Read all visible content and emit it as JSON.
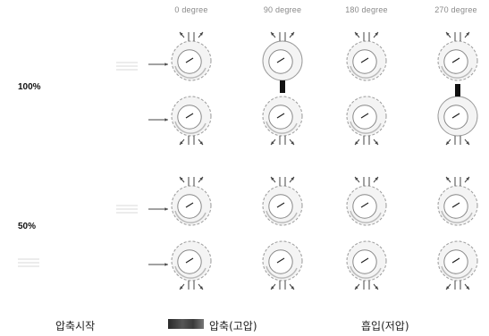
{
  "columns": [
    "0 degree",
    "90 degree",
    "180 degree",
    "270 degree"
  ],
  "rows": [
    {
      "label": "100%"
    },
    {
      "label": "50%"
    }
  ],
  "legend": {
    "start": "압축시작",
    "compression": "압축(고압)",
    "suction": "흡입(저압)"
  },
  "cells": [
    [
      {
        "top": "open",
        "bottom": "open"
      },
      {
        "top": "compression",
        "bottom": "open"
      },
      {
        "top": "open",
        "bottom": "open"
      },
      {
        "top": "open",
        "bottom": "compression"
      }
    ],
    [
      {
        "top": "open",
        "bottom": "open"
      },
      {
        "top": "open",
        "bottom": "open"
      },
      {
        "top": "open",
        "bottom": "open"
      },
      {
        "top": "open",
        "bottom": "open"
      }
    ]
  ],
  "colors": {
    "compression": "#2e2e2e",
    "suction": "#cfcfcf",
    "line": "#444444"
  }
}
